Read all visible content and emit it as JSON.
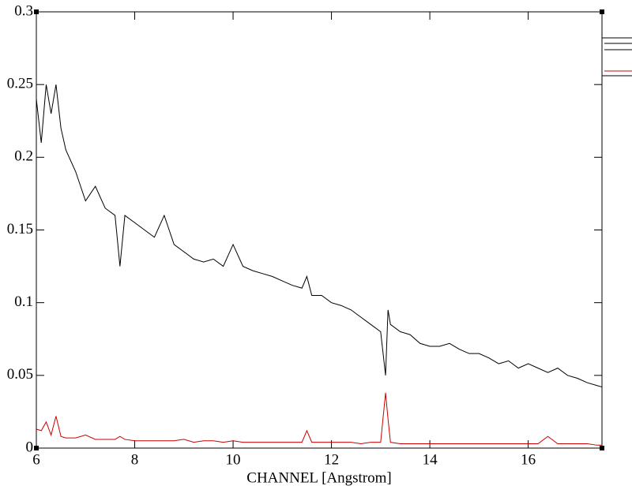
{
  "chart_data": {
    "type": "line",
    "x_label": "CHANNEL [Angstrom]",
    "x": [
      6.0,
      6.1,
      6.2,
      6.3,
      6.4,
      6.5,
      6.6,
      6.8,
      7.0,
      7.2,
      7.4,
      7.6,
      7.7,
      7.8,
      8.0,
      8.2,
      8.4,
      8.6,
      8.8,
      9.0,
      9.2,
      9.4,
      9.6,
      9.8,
      10.0,
      10.2,
      10.4,
      10.6,
      10.8,
      11.0,
      11.2,
      11.4,
      11.5,
      11.6,
      11.8,
      12.0,
      12.2,
      12.4,
      12.6,
      12.8,
      13.0,
      13.1,
      13.15,
      13.2,
      13.4,
      13.6,
      13.8,
      14.0,
      14.2,
      14.4,
      14.6,
      14.8,
      15.0,
      15.2,
      15.4,
      15.6,
      15.8,
      16.0,
      16.2,
      16.4,
      16.6,
      16.8,
      17.0,
      17.2,
      17.4,
      17.5
    ],
    "series": [
      {
        "color": "#000000",
        "values": [
          0.24,
          0.21,
          0.25,
          0.23,
          0.25,
          0.22,
          0.205,
          0.19,
          0.17,
          0.18,
          0.165,
          0.16,
          0.125,
          0.16,
          0.155,
          0.15,
          0.145,
          0.16,
          0.14,
          0.135,
          0.13,
          0.128,
          0.13,
          0.125,
          0.14,
          0.125,
          0.122,
          0.12,
          0.118,
          0.115,
          0.112,
          0.11,
          0.118,
          0.105,
          0.105,
          0.1,
          0.098,
          0.095,
          0.09,
          0.085,
          0.08,
          0.05,
          0.095,
          0.085,
          0.08,
          0.078,
          0.072,
          0.07,
          0.07,
          0.072,
          0.068,
          0.065,
          0.065,
          0.062,
          0.058,
          0.06,
          0.055,
          0.058,
          0.055,
          0.052,
          0.055,
          0.05,
          0.048,
          0.045,
          0.043,
          0.042
        ]
      },
      {
        "color": "#cc0000",
        "values": [
          0.013,
          0.012,
          0.018,
          0.009,
          0.022,
          0.008,
          0.007,
          0.007,
          0.009,
          0.006,
          0.006,
          0.006,
          0.008,
          0.006,
          0.005,
          0.005,
          0.005,
          0.005,
          0.005,
          0.006,
          0.004,
          0.005,
          0.005,
          0.004,
          0.005,
          0.004,
          0.004,
          0.004,
          0.004,
          0.004,
          0.004,
          0.004,
          0.012,
          0.004,
          0.004,
          0.004,
          0.004,
          0.004,
          0.003,
          0.004,
          0.004,
          0.038,
          0.02,
          0.004,
          0.003,
          0.003,
          0.003,
          0.003,
          0.003,
          0.003,
          0.003,
          0.003,
          0.003,
          0.003,
          0.003,
          0.003,
          0.003,
          0.003,
          0.003,
          0.008,
          0.003,
          0.003,
          0.003,
          0.003,
          0.002,
          0.002
        ]
      }
    ],
    "xlim": [
      6,
      17.5
    ],
    "xticks": [
      6,
      8,
      10,
      12,
      14,
      16
    ],
    "ylim": [
      0,
      0.3
    ],
    "yticks": [
      0,
      0.05,
      0.1,
      0.15,
      0.2,
      0.25,
      0.3
    ]
  }
}
